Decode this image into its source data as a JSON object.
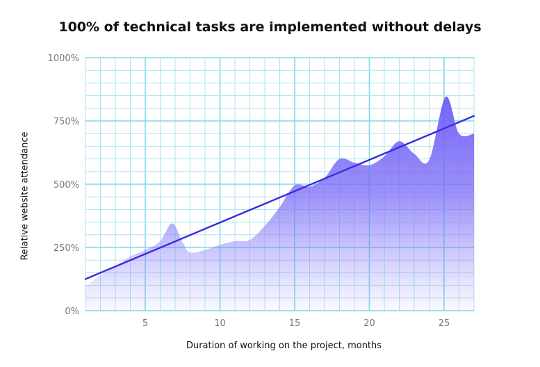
{
  "chart_data": {
    "type": "area",
    "title": "100% of technical tasks are implemented without delays",
    "xlabel": "Duration of working on the project, months",
    "ylabel": "Relative website attendance",
    "xlim": [
      1,
      27
    ],
    "ylim": [
      0,
      1000
    ],
    "x_ticks": [
      5,
      10,
      15,
      20,
      25
    ],
    "y_ticks": [
      0,
      250,
      500,
      750,
      1000
    ],
    "y_tick_labels": [
      "0%",
      "250%",
      "500%",
      "750%",
      "1000%"
    ],
    "grid": true,
    "series": [
      {
        "type": "area",
        "x": [
          1,
          2,
          3,
          4,
          5,
          6,
          6.8,
          7.5,
          8,
          9,
          10,
          11,
          12,
          13,
          14,
          15,
          16,
          17,
          18,
          19,
          20,
          21,
          22,
          23,
          24,
          25.1,
          26,
          27
        ],
        "values": [
          95,
          140,
          175,
          215,
          240,
          275,
          345,
          270,
          230,
          240,
          260,
          275,
          280,
          335,
          410,
          495,
          490,
          525,
          600,
          585,
          575,
          610,
          670,
          620,
          595,
          845,
          700,
          700
        ]
      },
      {
        "type": "line",
        "x": [
          1,
          27
        ],
        "values": [
          125,
          770
        ]
      }
    ],
    "colors": {
      "area_fill": "#6d5cf6",
      "trend_line": "#3b2ae0",
      "grid_major": "#7fd8e6",
      "grid_minor": "#a9e6ef",
      "tick_text": "#777777"
    }
  }
}
